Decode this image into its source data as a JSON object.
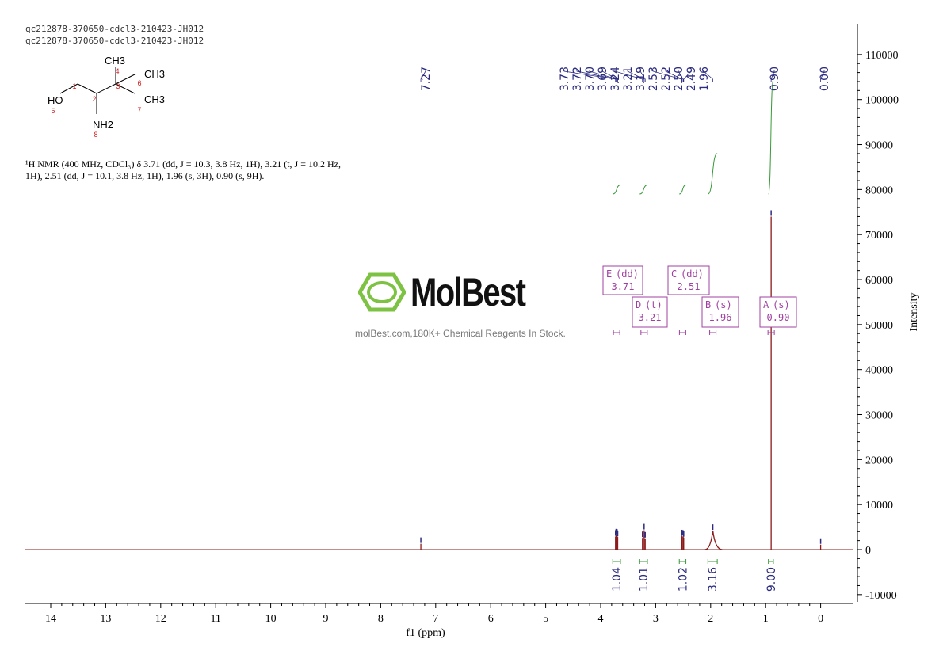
{
  "header": {
    "line1": "qc212878-370650-cdcl3-210423-JH012",
    "line2": "qc212878-370650-cdcl3-210423-JH012"
  },
  "structure": {
    "atoms": [
      {
        "text": "CH3",
        "kind": "label"
      },
      {
        "text": "CH3",
        "kind": "label"
      },
      {
        "text": "CH3",
        "kind": "label"
      },
      {
        "text": "HO",
        "kind": "label"
      },
      {
        "text": "NH2",
        "kind": "label"
      },
      {
        "text": "1",
        "kind": "num"
      },
      {
        "text": "2",
        "kind": "num"
      },
      {
        "text": "3",
        "kind": "num"
      },
      {
        "text": "4",
        "kind": "num"
      },
      {
        "text": "5",
        "kind": "num"
      },
      {
        "text": "6",
        "kind": "num"
      },
      {
        "text": "7",
        "kind": "num"
      },
      {
        "text": "8",
        "kind": "num"
      }
    ]
  },
  "nmr_text": "¹H NMR (400 MHz, CDCl₃) δ 3.71 (dd, J = 10.3, 3.8 Hz, 1H), 3.21 (t, J = 10.2 Hz, 1H), 2.51 (dd, J = 10.1, 3.8 Hz, 1H), 1.96 (s, 3H), 0.90 (s, 9H).",
  "watermark": {
    "brand": "MolBest",
    "tagline": "molBest.com,180K+ Chemical Reagents In Stock."
  },
  "colors": {
    "spectrum": "#8b1a1a",
    "peak_label": "#2b2b80",
    "integral": "#3a9a3a",
    "multiplet": "#a040a0",
    "logo": "#7dc242",
    "axis": "#000000"
  },
  "chart_data": {
    "type": "line",
    "title": "",
    "xlabel": "f1 (ppm)",
    "ylabel": "Intensity",
    "xlim": [
      14.5,
      -0.5
    ],
    "ylim": [
      -12000,
      118000
    ],
    "x_reversed": true,
    "x_ticks": [
      "14",
      "13",
      "12",
      "11",
      "10",
      "9",
      "8",
      "7",
      "6",
      "5",
      "4",
      "3",
      "2",
      "1",
      "0"
    ],
    "y_ticks": [
      "110000",
      "100000",
      "90000",
      "80000",
      "70000",
      "60000",
      "50000",
      "40000",
      "30000",
      "20000",
      "10000",
      "0",
      "-10000"
    ],
    "peaks": [
      {
        "ppm": 7.27,
        "height": 1300
      },
      {
        "ppm": 3.73,
        "height": 2900
      },
      {
        "ppm": 3.72,
        "height": 3200
      },
      {
        "ppm": 3.7,
        "height": 3100
      },
      {
        "ppm": 3.69,
        "height": 2800
      },
      {
        "ppm": 3.24,
        "height": 2600
      },
      {
        "ppm": 3.21,
        "height": 4300
      },
      {
        "ppm": 3.19,
        "height": 2500
      },
      {
        "ppm": 2.53,
        "height": 2800
      },
      {
        "ppm": 2.52,
        "height": 3000
      },
      {
        "ppm": 2.5,
        "height": 2900
      },
      {
        "ppm": 2.49,
        "height": 2700
      },
      {
        "ppm": 1.96,
        "height": 4200,
        "broad": true
      },
      {
        "ppm": 0.9,
        "height": 74000
      },
      {
        "ppm": 0.0,
        "height": 1100
      }
    ],
    "peak_labels": [
      "7.27",
      "3.73",
      "3.72",
      "3.70",
      "3.69",
      "3.24",
      "3.21",
      "3.19",
      "2.53",
      "2.52",
      "2.50",
      "2.49",
      "1.96",
      "0.90",
      "0.00"
    ],
    "integrals": [
      {
        "from": 3.78,
        "to": 3.64,
        "value": "1.04",
        "curve_from": 79000,
        "curve_to": 81000
      },
      {
        "from": 3.29,
        "to": 3.15,
        "value": "1.01",
        "curve_from": 79000,
        "curve_to": 81000
      },
      {
        "from": 2.57,
        "to": 2.45,
        "value": "1.02",
        "curve_from": 79000,
        "curve_to": 81000
      },
      {
        "from": 2.05,
        "to": 1.88,
        "value": "3.16",
        "curve_from": 79000,
        "curve_to": 88000
      },
      {
        "from": 0.95,
        "to": 0.86,
        "value": "9.00",
        "curve_from": 79000,
        "curve_to": 104500
      }
    ],
    "multiplets": [
      {
        "letter": "E",
        "type": "(dd)",
        "shift": "3.71",
        "ppm": 3.71
      },
      {
        "letter": "D",
        "type": "(t)",
        "shift": "3.21",
        "ppm": 3.21
      },
      {
        "letter": "C",
        "type": "(dd)",
        "shift": "2.51",
        "ppm": 2.51
      },
      {
        "letter": "B",
        "type": "(s)",
        "shift": "1.96",
        "ppm": 1.96
      },
      {
        "letter": "A",
        "type": "(s)",
        "shift": "0.90",
        "ppm": 0.9
      }
    ]
  }
}
